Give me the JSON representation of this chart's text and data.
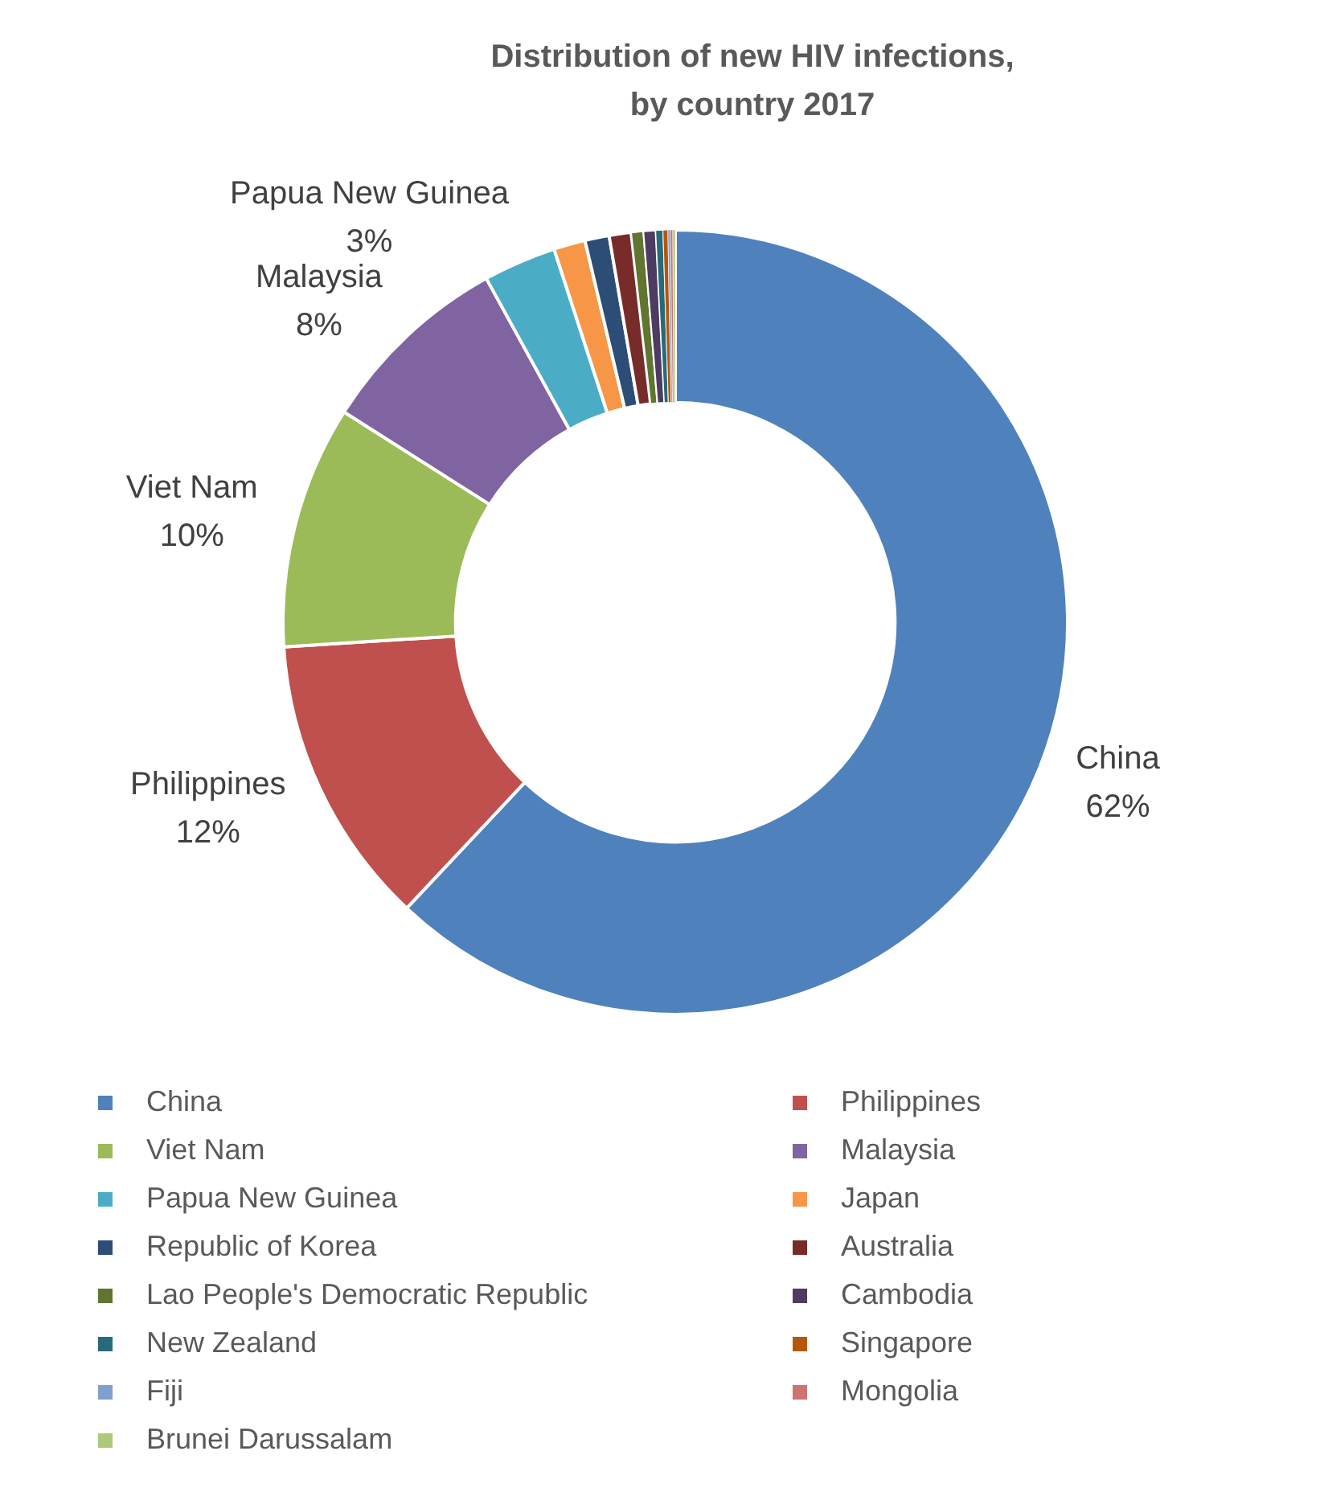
{
  "chart_data": {
    "type": "donut",
    "title": "Distribution of new HIV infections, by country 2017",
    "categories": [
      "China",
      "Philippines",
      "Viet Nam",
      "Malaysia",
      "Papua New Guinea",
      "Japan",
      "Republic of Korea",
      "Australia",
      "Lao People's Democratic Republic",
      "Cambodia",
      "New Zealand",
      "Singapore",
      "Fiji",
      "Mongolia",
      "Brunei Darussalam"
    ],
    "values": [
      62,
      12,
      10,
      8,
      3,
      1.3,
      1.0,
      0.9,
      0.5,
      0.5,
      0.3,
      0.2,
      0.1,
      0.1,
      0.1
    ],
    "colors": [
      "#4f81bd",
      "#c0504d",
      "#9bbb59",
      "#8064a2",
      "#4bacc6",
      "#f79646",
      "#2c4d75",
      "#772c2a",
      "#5f7530",
      "#4d3b62",
      "#276a7c",
      "#b65708",
      "#7f9fcf",
      "#cd7371",
      "#afc97a"
    ],
    "value_labels": [
      "62%",
      "12%",
      "10%",
      "8%",
      "3%",
      null,
      null,
      null,
      null,
      null,
      null,
      null,
      null,
      null,
      null
    ],
    "legend": "bottom"
  }
}
